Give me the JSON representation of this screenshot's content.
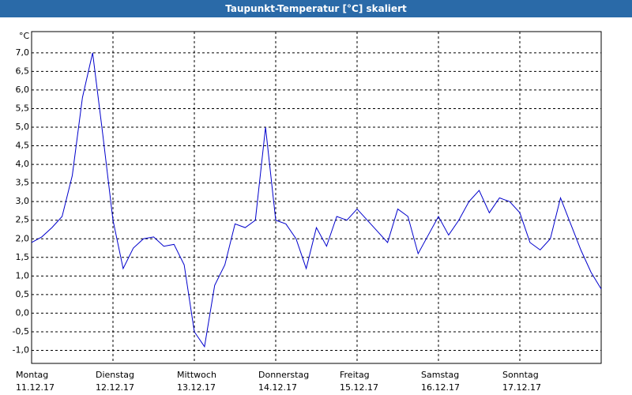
{
  "chart_data": {
    "type": "line",
    "title": "Taupunkt-Temperatur [°C] skaliert",
    "y_label": "°C",
    "x": [
      0,
      3,
      6,
      9,
      12,
      15,
      18,
      21,
      24,
      27,
      30,
      33,
      36,
      39,
      42,
      45,
      48,
      51,
      54,
      57,
      60,
      63,
      66,
      69,
      72,
      75,
      78,
      81,
      84,
      87,
      90,
      93,
      96,
      99,
      102,
      105,
      108,
      111,
      114,
      117,
      120,
      123,
      126,
      129,
      132,
      135,
      138,
      141,
      144,
      147,
      150,
      153,
      156,
      159,
      162,
      165,
      168
    ],
    "series": [
      {
        "color": "#0000cc",
        "values": [
          1.9,
          2.05,
          2.3,
          2.6,
          3.7,
          5.8,
          7.0,
          4.8,
          2.5,
          1.2,
          1.75,
          2.0,
          2.05,
          1.8,
          1.85,
          1.3,
          -0.5,
          -0.9,
          0.75,
          1.3,
          2.4,
          2.3,
          2.5,
          5.0,
          2.5,
          2.4,
          2.0,
          1.2,
          2.3,
          1.8,
          2.6,
          2.5,
          2.8,
          2.5,
          2.2,
          1.9,
          2.8,
          2.6,
          1.6,
          2.1,
          2.6,
          2.1,
          2.5,
          3.0,
          3.3,
          2.7,
          3.1,
          3.0,
          2.7,
          1.9,
          1.7,
          2.0,
          3.1,
          2.4,
          1.7,
          1.1,
          0.65
        ]
      }
    ],
    "xlim": [
      0,
      168
    ],
    "xticks": [
      {
        "value": 0,
        "label": [
          "Montag",
          "11.12.17"
        ]
      },
      {
        "value": 24,
        "label": [
          "Dienstag",
          "12.12.17"
        ]
      },
      {
        "value": 48,
        "label": [
          "Mittwoch",
          "13.12.17"
        ]
      },
      {
        "value": 72,
        "label": [
          "Donnerstag",
          "14.12.17"
        ]
      },
      {
        "value": 96,
        "label": [
          "Freitag",
          "15.12.17"
        ]
      },
      {
        "value": 120,
        "label": [
          "Samstag",
          "16.12.17"
        ]
      },
      {
        "value": 144,
        "label": [
          "Sonntag",
          "17.12.17"
        ]
      }
    ],
    "ylim": [
      -1.35,
      7.57
    ],
    "yticks": [
      {
        "value": -1,
        "label": "-1,0"
      },
      {
        "value": -0.5,
        "label": "-0,5"
      },
      {
        "value": 0,
        "label": "0,0"
      },
      {
        "value": 0.5,
        "label": "0,5"
      },
      {
        "value": 1,
        "label": "1,0"
      },
      {
        "value": 1.5,
        "label": "1,5"
      },
      {
        "value": 2,
        "label": "2,0"
      },
      {
        "value": 2.5,
        "label": "2,5"
      },
      {
        "value": 3,
        "label": "3,0"
      },
      {
        "value": 3.5,
        "label": "3,5"
      },
      {
        "value": 4,
        "label": "4,0"
      },
      {
        "value": 4.5,
        "label": "4,5"
      },
      {
        "value": 5,
        "label": "5,0"
      },
      {
        "value": 5.5,
        "label": "5,5"
      },
      {
        "value": 6,
        "label": "6,0"
      },
      {
        "value": 6.5,
        "label": "6,5"
      },
      {
        "value": 7,
        "label": "7,0"
      }
    ],
    "grid": true
  }
}
